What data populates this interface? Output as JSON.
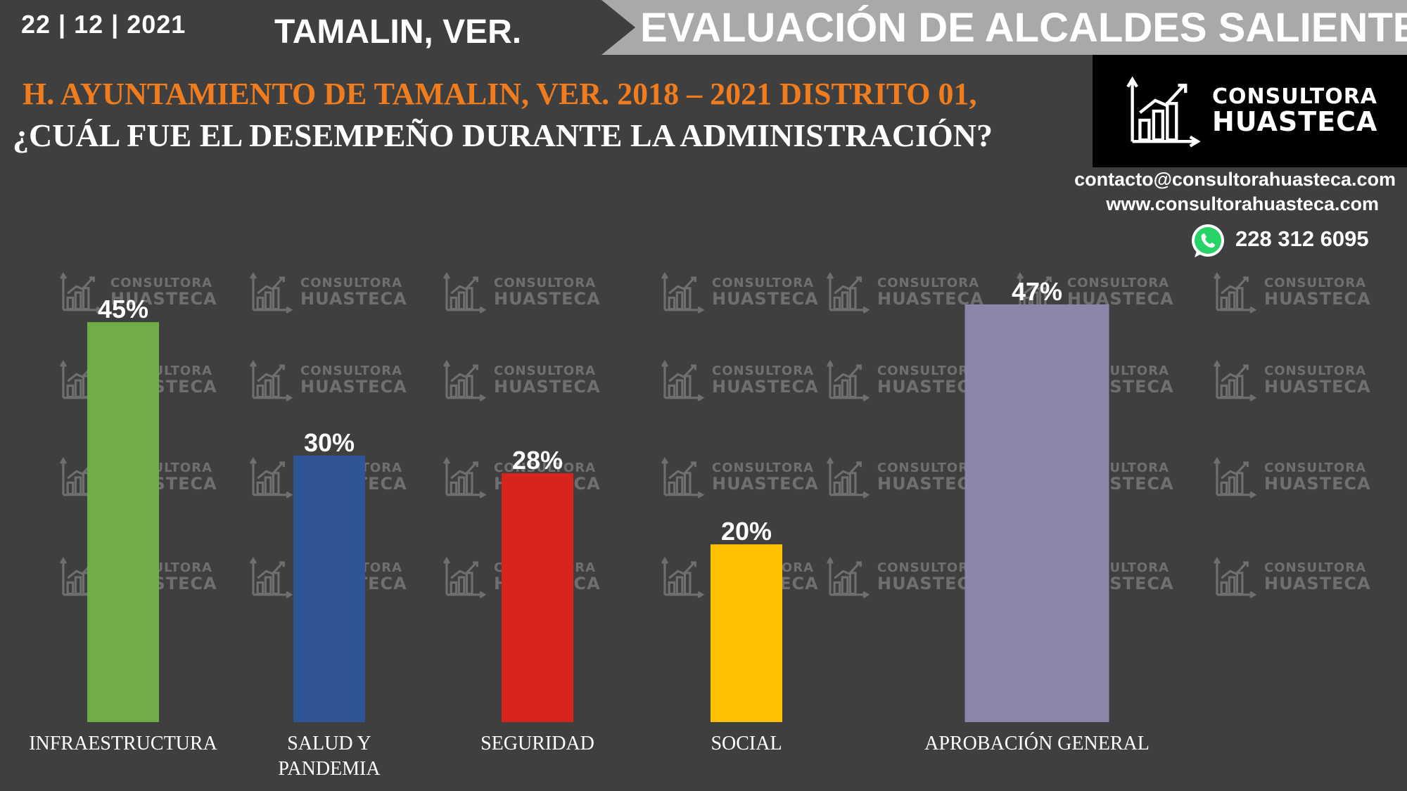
{
  "header": {
    "date": "22 | 12 | 2021",
    "place": "TAMALIN, VER.",
    "banner_title": "EVALUACIÓN DE ALCALDES SALIENTES",
    "subtitle": "H. AYUNTAMIENTO DE TAMALIN, VER. 2018 – 2021 DISTRITO 01,",
    "question": "¿CUÁL FUE EL DESEMPEÑO DURANTE LA ADMINISTRACIÓN?"
  },
  "brand": {
    "line1": "CONSULTORA",
    "line2": "HUASTECA",
    "email": "contacto@consultorahuasteca.com",
    "website": "www.consultorahuasteca.com",
    "phone": "228 312 6095",
    "icons": [
      "chart-logo-icon",
      "whatsapp-icon"
    ]
  },
  "colors": {
    "background": "#3f3f3f",
    "subtitle": "#f07c1e",
    "banner": "#a9a9a9"
  },
  "chart_data": {
    "type": "bar",
    "title": "",
    "xlabel": "",
    "ylabel": "",
    "ylim": [
      0,
      50
    ],
    "grid": false,
    "legend": "none",
    "categories": [
      [
        "INFRAESTRUCTURA"
      ],
      [
        "SALUD Y",
        "PANDEMIA"
      ],
      [
        "SEGURIDAD"
      ],
      [
        "SOCIAL"
      ],
      [
        "APROBACIÓN GENERAL"
      ]
    ],
    "values": [
      45,
      30,
      28,
      20,
      47
    ],
    "value_labels": [
      "45%",
      "30%",
      "28%",
      "20%",
      "47%"
    ],
    "colors": [
      "#70ad47",
      "#2f5597",
      "#d9231d",
      "#ffc000",
      "#8e85ab"
    ]
  }
}
